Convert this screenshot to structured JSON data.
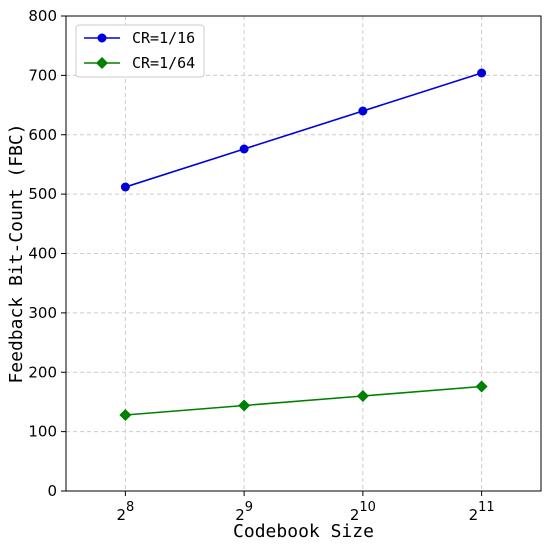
{
  "chart_data": {
    "type": "line",
    "x": [
      8,
      9,
      10,
      11
    ],
    "x_tick_labels": [
      {
        "base": "2",
        "exp": "8"
      },
      {
        "base": "2",
        "exp": "9"
      },
      {
        "base": "2",
        "exp": "10"
      },
      {
        "base": "2",
        "exp": "11"
      }
    ],
    "xlabel": "Codebook Size",
    "ylabel": "Feedback Bit-Count (FBC)",
    "xlim": [
      7.5,
      11.5
    ],
    "ylim": [
      0,
      800
    ],
    "yticks": [
      0,
      100,
      200,
      300,
      400,
      500,
      600,
      700,
      800
    ],
    "grid": true,
    "legend_position": "top-left",
    "series": [
      {
        "name": "CR=1/16",
        "values": [
          512,
          576,
          640,
          704
        ],
        "color": "#0000dd",
        "marker": "circle"
      },
      {
        "name": "CR=1/64",
        "values": [
          128,
          144,
          160,
          176
        ],
        "color": "#008000",
        "marker": "diamond"
      }
    ]
  }
}
